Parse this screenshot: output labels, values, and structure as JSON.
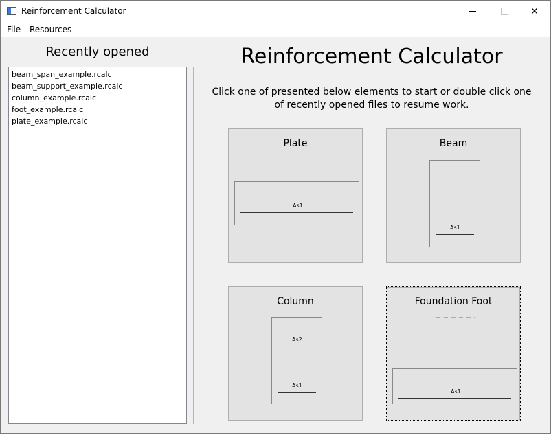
{
  "window": {
    "title": "Reinforcement Calculator",
    "minimize_icon": "minimize-icon",
    "maximize_icon": "maximize-icon",
    "close_glyph": "✕"
  },
  "menu": {
    "items": [
      {
        "label": "File"
      },
      {
        "label": "Resources"
      }
    ]
  },
  "recent": {
    "title": "Recently opened",
    "files": [
      "beam_span_example.rcalc",
      "beam_support_example.rcalc",
      "column_example.rcalc",
      "foot_example.rcalc",
      "plate_example.rcalc"
    ]
  },
  "main": {
    "title": "Reinforcement Calculator",
    "subtitle": "Click one of presented below elements to start or double click one of recently opened files to resume work.",
    "elements": [
      {
        "title": "Plate",
        "labels": [
          "As1"
        ]
      },
      {
        "title": "Beam",
        "labels": [
          "As1"
        ]
      },
      {
        "title": "Column",
        "labels": [
          "As2",
          "As1"
        ]
      },
      {
        "title": "Foundation Foot",
        "labels": [
          "As1"
        ]
      }
    ]
  }
}
